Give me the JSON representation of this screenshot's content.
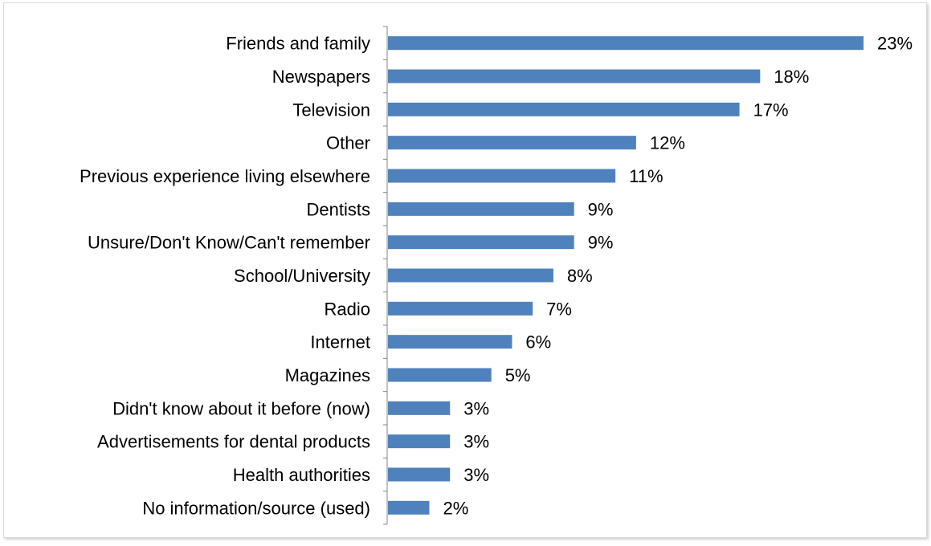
{
  "chart_data": {
    "type": "bar",
    "orientation": "horizontal",
    "categories": [
      "Friends and family",
      "Newspapers",
      "Television",
      "Other",
      "Previous experience living elsewhere",
      "Dentists",
      "Unsure/Don't Know/Can't remember",
      "School/University",
      "Radio",
      "Internet",
      "Magazines",
      "Didn't know about it before (now)",
      "Advertisements for dental products",
      "Health authorities",
      "No information/source (used)"
    ],
    "values": [
      23,
      18,
      17,
      12,
      11,
      9,
      9,
      8,
      7,
      6,
      5,
      3,
      3,
      3,
      2
    ],
    "value_labels": [
      "23%",
      "18%",
      "17%",
      "12%",
      "11%",
      "9%",
      "9%",
      "8%",
      "7%",
      "6%",
      "5%",
      "3%",
      "3%",
      "3%",
      "2%"
    ],
    "xlim": [
      0,
      25
    ],
    "bar_color": "#4f81bd",
    "grid": false,
    "legend": "none"
  }
}
